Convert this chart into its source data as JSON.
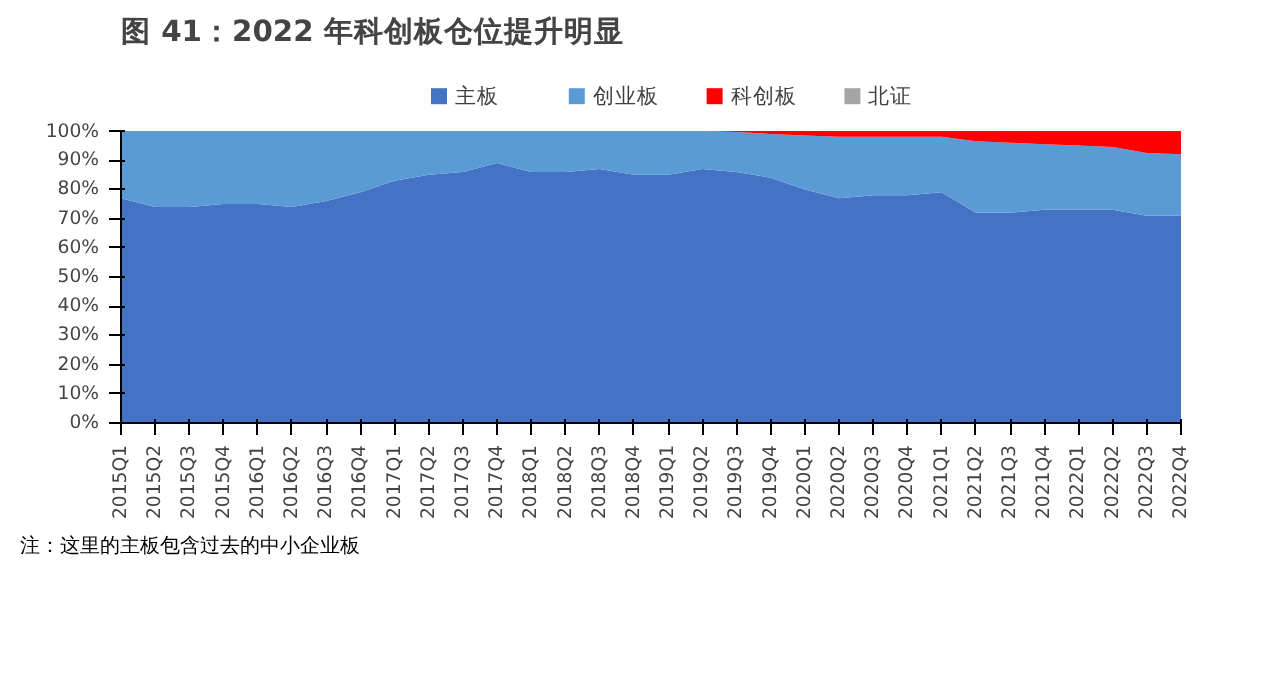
{
  "chart_data": {
    "type": "area",
    "stacked": true,
    "title": "图 41：2022 年科创板仓位提升明显",
    "categories": [
      "2015Q1",
      "2015Q2",
      "2015Q3",
      "2015Q4",
      "2016Q1",
      "2016Q2",
      "2016Q3",
      "2016Q4",
      "2017Q1",
      "2017Q2",
      "2017Q3",
      "2017Q4",
      "2018Q1",
      "2018Q2",
      "2018Q3",
      "2018Q4",
      "2019Q1",
      "2019Q2",
      "2019Q3",
      "2019Q4",
      "2020Q1",
      "2020Q2",
      "2020Q3",
      "2020Q4",
      "2021Q1",
      "2021Q2",
      "2021Q3",
      "2021Q4",
      "2022Q1",
      "2022Q2",
      "2022Q3",
      "2022Q4"
    ],
    "series": [
      {
        "name": "主板",
        "color": "#4472c4",
        "values": [
          77,
          74,
          74,
          75,
          75,
          74,
          76,
          79,
          83,
          85,
          86,
          89,
          86,
          86,
          87,
          85,
          85,
          87,
          86,
          84,
          80,
          77,
          78,
          78,
          79,
          72,
          72,
          73,
          73,
          73,
          71,
          71
        ]
      },
      {
        "name": "创业板",
        "color": "#5b9bd5",
        "values": [
          23,
          26,
          26,
          25,
          25,
          26,
          24,
          21,
          17,
          15,
          14,
          11,
          14,
          14,
          13,
          15,
          15,
          13,
          13.7,
          15,
          18.5,
          21,
          20,
          20,
          19,
          24.5,
          24,
          22.5,
          22,
          21.5,
          21.5,
          21
        ]
      },
      {
        "name": "科创板",
        "color": "#ff0000",
        "values": [
          0,
          0,
          0,
          0,
          0,
          0,
          0,
          0,
          0,
          0,
          0,
          0,
          0,
          0,
          0,
          0,
          0,
          0,
          0.3,
          1,
          1.5,
          2,
          2,
          2,
          2,
          3.5,
          4,
          4.5,
          5,
          5.5,
          7.5,
          8
        ]
      },
      {
        "name": "北证",
        "color": "#a5a5a5",
        "values": [
          null,
          null,
          null,
          null,
          null,
          null,
          null,
          null,
          null,
          null,
          null,
          null,
          null,
          null,
          null,
          null,
          null,
          null,
          null,
          null,
          null,
          null,
          null,
          null,
          null,
          null,
          null,
          null,
          null,
          null,
          null,
          null
        ]
      }
    ],
    "ylim": [
      0,
      100
    ],
    "yticks": [
      {
        "value": 0,
        "label": "0%"
      },
      {
        "value": 10,
        "label": "10%"
      },
      {
        "value": 20,
        "label": "20%"
      },
      {
        "value": 30,
        "label": "30%"
      },
      {
        "value": 40,
        "label": "40%"
      },
      {
        "value": 50,
        "label": "50%"
      },
      {
        "value": 60,
        "label": "60%"
      },
      {
        "value": 70,
        "label": "70%"
      },
      {
        "value": 80,
        "label": "80%"
      },
      {
        "value": 90,
        "label": "90%"
      },
      {
        "value": 100,
        "label": "100%"
      }
    ],
    "grid": false,
    "legend": "top",
    "annotations": [
      "注：这里的主板包含过去的中小企业板"
    ]
  }
}
